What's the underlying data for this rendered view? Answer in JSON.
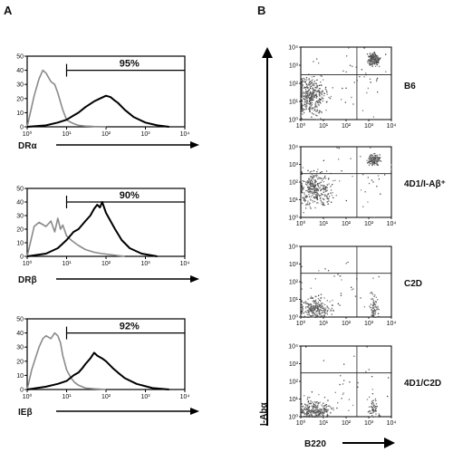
{
  "figure": {
    "panel_a_label": "A",
    "panel_b_label": "B"
  },
  "chart_data": [
    {
      "type": "line",
      "panel": "A",
      "xlabel": "DRα",
      "ylabel": "",
      "xscale": "log",
      "xlim": [
        1,
        10000
      ],
      "ylim": [
        0,
        50
      ],
      "yticks": [
        0,
        10,
        20,
        30,
        40,
        50
      ],
      "xticks": [
        "10⁰",
        "10¹",
        "10²",
        "10³",
        "10⁴"
      ],
      "gate_label": "95%",
      "gate_range": [
        10,
        10000
      ],
      "series": [
        {
          "color": "#8a8a8a",
          "x": [
            1,
            1.5,
            2,
            2.5,
            3,
            4,
            5,
            6,
            8,
            10,
            13,
            16,
            20,
            30,
            50,
            100
          ],
          "y": [
            0,
            22,
            34,
            40,
            38,
            32,
            30,
            24,
            12,
            5,
            3,
            2,
            1,
            0.5,
            0.2,
            0
          ]
        },
        {
          "color": "#000000",
          "x": [
            1,
            3,
            6,
            10,
            15,
            20,
            30,
            50,
            70,
            100,
            130,
            160,
            200,
            300,
            500,
            1000,
            2000,
            4000
          ],
          "y": [
            0,
            1,
            3,
            5,
            8,
            10,
            14,
            18,
            20,
            22,
            21,
            19,
            17,
            12,
            7,
            3,
            1,
            0
          ]
        }
      ]
    },
    {
      "type": "line",
      "panel": "A",
      "xlabel": "DRβ",
      "ylabel": "",
      "xscale": "log",
      "xlim": [
        1,
        10000
      ],
      "ylim": [
        0,
        50
      ],
      "yticks": [
        0,
        10,
        20,
        30,
        40,
        50
      ],
      "xticks": [
        "10⁰",
        "10¹",
        "10²",
        "10³",
        "10⁴"
      ],
      "gate_label": "90%",
      "gate_range": [
        10,
        10000
      ],
      "series": [
        {
          "color": "#8a8a8a",
          "x": [
            1,
            1.5,
            2,
            3,
            4,
            5,
            6,
            7,
            8,
            10,
            13,
            16,
            20,
            30,
            50,
            80,
            150,
            300
          ],
          "y": [
            0,
            22,
            25,
            22,
            26,
            18,
            28,
            20,
            23,
            15,
            12,
            10,
            8,
            5,
            3,
            2,
            1,
            0
          ]
        },
        {
          "color": "#000000",
          "x": [
            1,
            3,
            6,
            10,
            15,
            20,
            30,
            40,
            50,
            60,
            70,
            80,
            100,
            130,
            170,
            250,
            400,
            800,
            2000
          ],
          "y": [
            0,
            2,
            6,
            12,
            18,
            20,
            26,
            30,
            35,
            38,
            36,
            40,
            32,
            26,
            20,
            12,
            6,
            2,
            0
          ]
        }
      ]
    },
    {
      "type": "line",
      "panel": "A",
      "xlabel": "IEβ",
      "ylabel": "",
      "xscale": "log",
      "xlim": [
        1,
        10000
      ],
      "ylim": [
        0,
        50
      ],
      "yticks": [
        0,
        10,
        20,
        30,
        40,
        50
      ],
      "xticks": [
        "10⁰",
        "10¹",
        "10²",
        "10³",
        "10⁴"
      ],
      "gate_label": "92%",
      "gate_range": [
        10,
        10000
      ],
      "series": [
        {
          "color": "#8a8a8a",
          "x": [
            1,
            1.3,
            1.7,
            2,
            2.5,
            3,
            4,
            5,
            6,
            7,
            8,
            10,
            13,
            16,
            20,
            30,
            50,
            100
          ],
          "y": [
            0,
            14,
            24,
            30,
            36,
            38,
            36,
            40,
            38,
            33,
            24,
            14,
            8,
            5,
            3,
            1,
            0.5,
            0
          ]
        },
        {
          "color": "#000000",
          "x": [
            1,
            3,
            6,
            10,
            15,
            20,
            25,
            30,
            40,
            50,
            60,
            80,
            100,
            150,
            200,
            300,
            600,
            1500,
            4000
          ],
          "y": [
            0,
            2,
            4,
            6,
            10,
            12,
            15,
            18,
            22,
            26,
            24,
            22,
            20,
            15,
            12,
            8,
            4,
            1,
            0
          ]
        }
      ]
    },
    {
      "type": "scatter",
      "panel": "B",
      "label": "B6",
      "xlabel": "B220",
      "ylabel": "I-Abα",
      "xscale": "log",
      "yscale": "log",
      "xlim": [
        1,
        10000
      ],
      "ylim": [
        1,
        10000
      ],
      "ticks": [
        "10⁰",
        "10¹",
        "10²",
        "10³",
        "10⁴"
      ],
      "quadrant_gates": {
        "x": 300,
        "y": 300
      },
      "populations": [
        {
          "log_center": [
            0.4,
            1.3
          ],
          "log_spread": [
            0.35,
            0.5
          ],
          "n": 380
        },
        {
          "log_center": [
            3.2,
            3.35
          ],
          "log_spread": [
            0.12,
            0.16
          ],
          "n": 230
        },
        {
          "log_center": [
            2.2,
            2.2
          ],
          "log_spread": [
            1.0,
            1.0
          ],
          "n": 40
        }
      ]
    },
    {
      "type": "scatter",
      "panel": "B",
      "label": "4D1/I-Aβ⁺",
      "xlabel": "B220",
      "ylabel": "I-Abα",
      "xscale": "log",
      "yscale": "log",
      "xlim": [
        1,
        10000
      ],
      "ylim": [
        1,
        10000
      ],
      "ticks": [
        "10⁰",
        "10¹",
        "10²",
        "10³",
        "10⁴"
      ],
      "quadrant_gates": {
        "x": 300,
        "y": 300
      },
      "populations": [
        {
          "log_center": [
            0.6,
            1.6
          ],
          "log_spread": [
            0.35,
            0.45
          ],
          "n": 320
        },
        {
          "log_center": [
            3.2,
            3.3
          ],
          "log_spread": [
            0.12,
            0.14
          ],
          "n": 160
        },
        {
          "log_center": [
            2.0,
            2.2
          ],
          "log_spread": [
            1.0,
            1.0
          ],
          "n": 35
        }
      ]
    },
    {
      "type": "scatter",
      "panel": "B",
      "label": "C2D",
      "xlabel": "B220",
      "ylabel": "I-Abα",
      "xscale": "log",
      "yscale": "log",
      "xlim": [
        1,
        10000
      ],
      "ylim": [
        1,
        10000
      ],
      "ticks": [
        "10⁰",
        "10¹",
        "10²",
        "10³",
        "10⁴"
      ],
      "quadrant_gates": {
        "x": 300,
        "y": 300
      },
      "populations": [
        {
          "log_center": [
            0.6,
            0.5
          ],
          "log_spread": [
            0.35,
            0.3
          ],
          "n": 260
        },
        {
          "log_center": [
            3.2,
            0.5
          ],
          "log_spread": [
            0.1,
            0.35
          ],
          "n": 70
        },
        {
          "log_center": [
            2.0,
            1.8
          ],
          "log_spread": [
            1.0,
            1.0
          ],
          "n": 30
        }
      ]
    },
    {
      "type": "scatter",
      "panel": "B",
      "label": "4D1/C2D",
      "xlabel": "B220",
      "ylabel": "I-Abα",
      "xscale": "log",
      "yscale": "log",
      "xlim": [
        1,
        10000
      ],
      "ylim": [
        1,
        10000
      ],
      "ticks": [
        "10⁰",
        "10¹",
        "10²",
        "10³",
        "10⁴"
      ],
      "quadrant_gates": {
        "x": 300,
        "y": 300
      },
      "populations": [
        {
          "log_center": [
            0.6,
            0.4
          ],
          "log_spread": [
            0.35,
            0.28
          ],
          "n": 270
        },
        {
          "log_center": [
            3.2,
            0.5
          ],
          "log_spread": [
            0.1,
            0.35
          ],
          "n": 60
        },
        {
          "log_center": [
            2.0,
            1.8
          ],
          "log_spread": [
            1.0,
            1.0
          ],
          "n": 30
        }
      ]
    }
  ]
}
